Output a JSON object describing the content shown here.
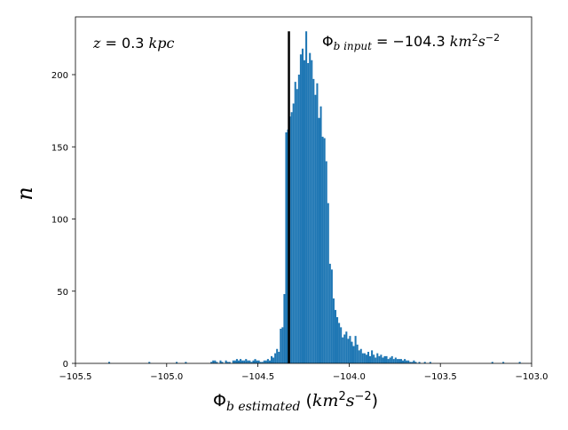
{
  "chart_data": {
    "type": "bar",
    "xlabel": "Φ_b estimated (km²s⁻²)",
    "ylabel": "n",
    "xlim": [
      -105.5,
      -103.0
    ],
    "ylim": [
      0,
      240
    ],
    "xticks": [
      "−105.5",
      "−105.0",
      "−104.5",
      "−104.0",
      "−103.5",
      "−103.0"
    ],
    "xtick_values": [
      -105.5,
      -105.0,
      -104.5,
      -104.0,
      -103.5,
      -103.0
    ],
    "yticks": [
      "0",
      "50",
      "100",
      "150",
      "200"
    ],
    "ytick_values": [
      0,
      50,
      100,
      150,
      200
    ],
    "bar_color": "#1f77b4",
    "input_line_color": "#000000",
    "input_value": -104.33,
    "annotations": {
      "redshift": "z = 0.3 kpc",
      "input": "Φ_b input = −104.3 km²s⁻²"
    },
    "bin_width": 0.01,
    "bins": [
      [
        -105.32,
        1
      ],
      [
        -105.1,
        1
      ],
      [
        -104.95,
        1
      ],
      [
        -104.9,
        1
      ],
      [
        -104.76,
        1
      ],
      [
        -104.75,
        2
      ],
      [
        -104.74,
        2
      ],
      [
        -104.73,
        1
      ],
      [
        -104.71,
        2
      ],
      [
        -104.7,
        1
      ],
      [
        -104.68,
        2
      ],
      [
        -104.67,
        1
      ],
      [
        -104.66,
        1
      ],
      [
        -104.64,
        2
      ],
      [
        -104.63,
        2
      ],
      [
        -104.62,
        3
      ],
      [
        -104.61,
        2
      ],
      [
        -104.6,
        3
      ],
      [
        -104.59,
        2
      ],
      [
        -104.58,
        2
      ],
      [
        -104.57,
        3
      ],
      [
        -104.56,
        2
      ],
      [
        -104.55,
        2
      ],
      [
        -104.54,
        1
      ],
      [
        -104.53,
        2
      ],
      [
        -104.52,
        3
      ],
      [
        -104.51,
        2
      ],
      [
        -104.5,
        2
      ],
      [
        -104.49,
        1
      ],
      [
        -104.48,
        1
      ],
      [
        -104.47,
        2
      ],
      [
        -104.46,
        2
      ],
      [
        -104.45,
        3
      ],
      [
        -104.44,
        2
      ],
      [
        -104.43,
        5
      ],
      [
        -104.42,
        4
      ],
      [
        -104.41,
        7
      ],
      [
        -104.4,
        10
      ],
      [
        -104.39,
        8
      ],
      [
        -104.38,
        24
      ],
      [
        -104.37,
        25
      ],
      [
        -104.36,
        48
      ],
      [
        -104.35,
        160
      ],
      [
        -104.34,
        162
      ],
      [
        -104.33,
        171
      ],
      [
        -104.32,
        174
      ],
      [
        -104.31,
        180
      ],
      [
        -104.3,
        195
      ],
      [
        -104.29,
        190
      ],
      [
        -104.28,
        200
      ],
      [
        -104.27,
        214
      ],
      [
        -104.26,
        218
      ],
      [
        -104.25,
        210
      ],
      [
        -104.24,
        230
      ],
      [
        -104.23,
        208
      ],
      [
        -104.22,
        215
      ],
      [
        -104.21,
        210
      ],
      [
        -104.2,
        197
      ],
      [
        -104.19,
        186
      ],
      [
        -104.18,
        194
      ],
      [
        -104.17,
        170
      ],
      [
        -104.16,
        178
      ],
      [
        -104.15,
        157
      ],
      [
        -104.14,
        156
      ],
      [
        -104.13,
        140
      ],
      [
        -104.12,
        111
      ],
      [
        -104.11,
        69
      ],
      [
        -104.1,
        65
      ],
      [
        -104.09,
        45
      ],
      [
        -104.08,
        37
      ],
      [
        -104.07,
        32
      ],
      [
        -104.06,
        28
      ],
      [
        -104.05,
        25
      ],
      [
        -104.04,
        18
      ],
      [
        -104.03,
        20
      ],
      [
        -104.02,
        22
      ],
      [
        -104.01,
        17
      ],
      [
        -104.0,
        19
      ],
      [
        -103.99,
        15
      ],
      [
        -103.98,
        12
      ],
      [
        -103.97,
        19
      ],
      [
        -103.96,
        13
      ],
      [
        -103.95,
        9
      ],
      [
        -103.94,
        10
      ],
      [
        -103.93,
        7
      ],
      [
        -103.92,
        7
      ],
      [
        -103.91,
        6
      ],
      [
        -103.9,
        8
      ],
      [
        -103.89,
        5
      ],
      [
        -103.88,
        9
      ],
      [
        -103.87,
        6
      ],
      [
        -103.86,
        4
      ],
      [
        -103.85,
        7
      ],
      [
        -103.84,
        5
      ],
      [
        -103.83,
        6
      ],
      [
        -103.82,
        4
      ],
      [
        -103.81,
        5
      ],
      [
        -103.8,
        5
      ],
      [
        -103.79,
        3
      ],
      [
        -103.78,
        4
      ],
      [
        -103.77,
        5
      ],
      [
        -103.76,
        3
      ],
      [
        -103.75,
        4
      ],
      [
        -103.74,
        3
      ],
      [
        -103.73,
        3
      ],
      [
        -103.72,
        3
      ],
      [
        -103.71,
        2
      ],
      [
        -103.7,
        3
      ],
      [
        -103.69,
        2
      ],
      [
        -103.68,
        2
      ],
      [
        -103.67,
        1
      ],
      [
        -103.66,
        1
      ],
      [
        -103.65,
        2
      ],
      [
        -103.64,
        1
      ],
      [
        -103.62,
        1
      ],
      [
        -103.59,
        1
      ],
      [
        -103.56,
        1
      ],
      [
        -103.22,
        1
      ],
      [
        -103.16,
        1
      ],
      [
        -103.07,
        1
      ]
    ]
  }
}
